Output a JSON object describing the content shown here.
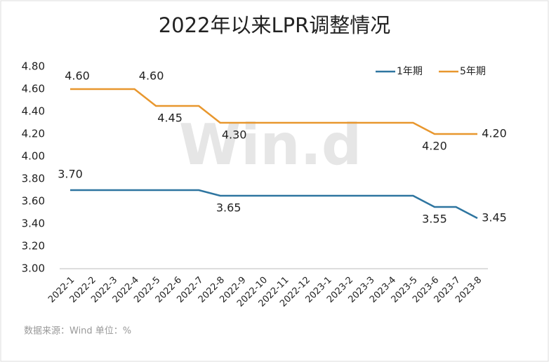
{
  "chart_data": {
    "type": "line",
    "title": "2022年以来LPR调整情况",
    "categories": [
      "2022-1",
      "2022-2",
      "2022-3",
      "2022-4",
      "2022-5",
      "2022-6",
      "2022-7",
      "2022-8",
      "2022-9",
      "2022-10",
      "2022-11",
      "2022-12",
      "2023-1",
      "2023-2",
      "2023-3",
      "2023-4",
      "2023-5",
      "2023-6",
      "2023-7",
      "2023-8"
    ],
    "series": [
      {
        "name": "1年期",
        "color": "#2e75a0",
        "values": [
          3.7,
          3.7,
          3.7,
          3.7,
          3.7,
          3.7,
          3.7,
          3.65,
          3.65,
          3.65,
          3.65,
          3.65,
          3.65,
          3.65,
          3.65,
          3.65,
          3.65,
          3.55,
          3.55,
          3.45
        ],
        "value_labels": [
          "3.70",
          null,
          null,
          null,
          null,
          null,
          null,
          "3.65",
          null,
          null,
          null,
          null,
          null,
          null,
          null,
          null,
          null,
          "3.55",
          null,
          "3.45"
        ]
      },
      {
        "name": "5年期",
        "color": "#e8972e",
        "values": [
          4.6,
          4.6,
          4.6,
          4.6,
          4.45,
          4.45,
          4.45,
          4.3,
          4.3,
          4.3,
          4.3,
          4.3,
          4.3,
          4.3,
          4.3,
          4.3,
          4.3,
          4.2,
          4.2,
          4.2
        ],
        "value_labels": [
          "4.60",
          null,
          null,
          "4.60",
          "4.45",
          null,
          null,
          "4.30",
          null,
          null,
          null,
          null,
          null,
          null,
          null,
          null,
          null,
          "4.20",
          null,
          "4.20"
        ]
      }
    ],
    "ylim": [
      3.0,
      4.8
    ],
    "yticks": [
      {
        "value": 3.0,
        "label": "3.00"
      },
      {
        "value": 3.2,
        "label": "3.20"
      },
      {
        "value": 3.4,
        "label": "3.40"
      },
      {
        "value": 3.6,
        "label": "3.60"
      },
      {
        "value": 3.8,
        "label": "3.80"
      },
      {
        "value": 4.0,
        "label": "4.00"
      },
      {
        "value": 4.2,
        "label": "4.20"
      },
      {
        "value": 4.4,
        "label": "4.40"
      },
      {
        "value": 4.6,
        "label": "4.60"
      },
      {
        "value": 4.8,
        "label": "4.80"
      }
    ],
    "grid": false,
    "legend": "top-right",
    "watermark": "Win.d",
    "note": "数据来源：Wind   单位：%"
  }
}
